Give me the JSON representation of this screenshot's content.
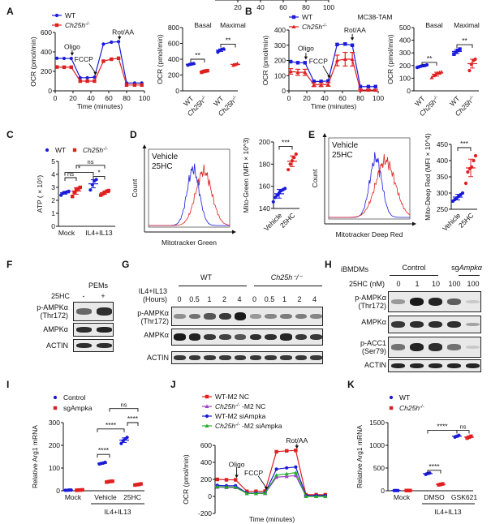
{
  "colors": {
    "wt": "#1a1adb",
    "ko": "#e02020",
    "purple": "#a040d0",
    "green": "#22b022"
  },
  "panel_labels": [
    "A",
    "B",
    "C",
    "D",
    "E",
    "F",
    "G",
    "H",
    "I",
    "J",
    "K"
  ],
  "chart_data": [
    {
      "id": "A-line",
      "type": "line",
      "title": "",
      "xlabel": "Time (minutes)",
      "ylabel": "OCR (pmol/min)",
      "xlim": [
        0,
        100
      ],
      "ylim": [
        0,
        600
      ],
      "xticks": [
        0,
        20,
        40,
        60,
        80,
        100
      ],
      "yticks": [
        0,
        200,
        400,
        600
      ],
      "legend": [
        "WT",
        "Ch25h-/-"
      ],
      "legend_position": "top-left",
      "annotations": [
        "Oligo",
        "FCCP",
        "Rot/AA"
      ],
      "x": [
        2,
        10,
        18,
        28,
        36,
        44,
        54,
        63,
        71,
        80,
        89,
        97
      ],
      "series": [
        {
          "name": "WT",
          "values": [
            335,
            333,
            333,
            135,
            135,
            140,
            480,
            500,
            505,
            80,
            80,
            80
          ]
        },
        {
          "name": "Ch25h-/-",
          "values": [
            245,
            243,
            243,
            100,
            100,
            100,
            305,
            325,
            335,
            60,
            60,
            60
          ]
        }
      ]
    },
    {
      "id": "A-dot",
      "type": "scatter",
      "ylabel": "OCR (pmol/min)",
      "ylim": [
        0,
        800
      ],
      "yticks": [
        0,
        200,
        400,
        600,
        800
      ],
      "groups": [
        "Basal",
        "Maximal"
      ],
      "categories": [
        "WT",
        "Ch25h-/-",
        "WT",
        "Ch25h-/-"
      ],
      "sig": [
        "**",
        "**"
      ],
      "points": [
        [
          325,
          335,
          340,
          345
        ],
        [
          235,
          245,
          250,
          255
        ],
        [
          490,
          510,
          525,
          530
        ],
        [
          325,
          335,
          345
        ]
      ]
    },
    {
      "id": "B-line",
      "type": "line",
      "title": "MC38-TAM",
      "xlabel": "Time (minutes)",
      "ylabel": "OCR (pmol/min)",
      "xlim": [
        0,
        100
      ],
      "ylim": [
        0,
        400
      ],
      "xticks": [
        0,
        20,
        40,
        60,
        80,
        100
      ],
      "yticks": [
        0,
        100,
        200,
        300,
        400
      ],
      "legend": [
        "WT",
        "Ch25h-/-"
      ],
      "legend_position": "top-left",
      "annotations": [
        "Oligo",
        "FCCP",
        "Rot/AA"
      ],
      "x": [
        2,
        10,
        18,
        28,
        36,
        44,
        54,
        63,
        71,
        80,
        89,
        97
      ],
      "series": [
        {
          "name": "WT",
          "values": [
            192,
            185,
            185,
            62,
            62,
            65,
            305,
            308,
            300,
            28,
            28,
            28
          ]
        },
        {
          "name": "Ch25h-/-",
          "values": [
            128,
            122,
            122,
            40,
            40,
            42,
            200,
            208,
            208,
            5,
            5,
            5
          ],
          "errors": [
            18,
            20,
            20,
            12,
            12,
            12,
            35,
            45,
            45,
            5,
            5,
            5
          ]
        }
      ]
    },
    {
      "id": "B-dot",
      "type": "scatter",
      "ylabel": "OCR (pmol/min)",
      "ylim": [
        0,
        500
      ],
      "yticks": [
        0,
        100,
        200,
        300,
        400,
        500
      ],
      "groups": [
        "Basal",
        "Maximal"
      ],
      "categories": [
        "WT",
        "Ch25h-/-",
        "WT",
        "Ch25h-/-"
      ],
      "sig": [
        "**",
        "**"
      ],
      "points": [
        [
          185,
          190,
          195,
          200,
          200,
          205
        ],
        [
          105,
          120,
          130,
          140,
          145,
          150
        ],
        [
          290,
          305,
          320,
          330
        ],
        [
          160,
          210,
          240,
          250
        ]
      ]
    },
    {
      "id": "C",
      "type": "scatter",
      "ylabel": "ATP ( × 10^5)",
      "ylim": [
        0,
        5
      ],
      "yticks": [
        0,
        1,
        2,
        3,
        4,
        5
      ],
      "categories": [
        "Mock",
        "IL4+IL13"
      ],
      "legend": [
        "WT",
        "Ch25h-/-"
      ],
      "sig": [
        "ns",
        "*",
        "*",
        "ns"
      ],
      "points": [
        [
          2.4,
          2.55,
          2.6,
          2.65,
          2.7
        ],
        [
          2.3,
          2.6,
          2.8,
          2.9,
          3.0
        ],
        [
          2.8,
          3.2,
          3.5,
          3.6
        ],
        [
          2.4,
          2.5,
          2.6,
          2.7,
          2.75
        ]
      ]
    },
    {
      "id": "D-hist",
      "type": "area",
      "xlabel": "Mitotracker Green",
      "ylabel": "Count",
      "legend": [
        "Vehicle",
        "25HC"
      ]
    },
    {
      "id": "D-dot",
      "type": "scatter",
      "ylabel": "Mito-Green (MFI × 10^3)",
      "ylim": [
        140,
        200
      ],
      "yticks": [
        140,
        160,
        180,
        200
      ],
      "categories": [
        "Vehicle",
        "25HC"
      ],
      "sig": [
        "***"
      ],
      "points": [
        [
          146,
          150,
          152,
          154,
          156,
          157,
          158
        ],
        [
          175,
          180,
          183,
          186,
          189
        ]
      ]
    },
    {
      "id": "E-hist",
      "type": "area",
      "xlabel": "Mitotracker Deep Red",
      "ylabel": "Count",
      "legend": [
        "Vehicle",
        "25HC"
      ]
    },
    {
      "id": "E-dot",
      "type": "scatter",
      "ylabel": "Mito-Deep Red (MFI × 10^4)",
      "ylim": [
        250,
        450
      ],
      "yticks": [
        250,
        300,
        350,
        400,
        450
      ],
      "categories": [
        "Vehicle",
        "25HC"
      ],
      "sig": [
        "***"
      ],
      "points": [
        [
          275,
          280,
          285,
          290,
          295,
          300
        ],
        [
          330,
          365,
          375,
          380,
          400,
          415
        ]
      ]
    },
    {
      "id": "I",
      "type": "scatter",
      "ylabel": "Relative Arg1 mRNA",
      "ylim": [
        0,
        300
      ],
      "yticks": [
        0,
        100,
        200,
        300
      ],
      "categories": [
        "Mock",
        "Vehicle",
        "25HC"
      ],
      "group_label": "IL4+IL13",
      "legend": [
        "Control",
        "sgAmpka"
      ],
      "sig": [
        "****",
        "****",
        "****",
        "ns"
      ],
      "points": [
        [
          2,
          2,
          3,
          3
        ],
        [
          2,
          3,
          3,
          4
        ],
        [
          118,
          120,
          122,
          125
        ],
        [
          38,
          40,
          41,
          42
        ],
        [
          208,
          220,
          228,
          235
        ],
        [
          25,
          27,
          28,
          30
        ]
      ]
    },
    {
      "id": "J",
      "type": "line",
      "xlabel": "Time (minutes)",
      "ylabel": "OCR (pmol/min)",
      "xlim": [
        0,
        100
      ],
      "ylim": [
        -200,
        600
      ],
      "xticks": [
        20,
        40,
        60,
        80,
        100
      ],
      "yticks": [
        -200,
        0,
        200,
        400,
        600
      ],
      "legend": [
        "WT-M2 NC",
        "Ch25h-/- -M2 NC",
        "WT-M2 siAmpka",
        "Ch25h-/- -M2 siAmpka"
      ],
      "annotations": [
        "Oligo",
        "FCCP",
        "Rot/AA"
      ],
      "x": [
        2,
        10,
        18,
        28,
        36,
        44,
        54,
        63,
        71,
        80,
        89,
        97
      ],
      "series": [
        {
          "name": "WT-M2 NC",
          "values": [
            200,
            195,
            195,
            60,
            60,
            62,
            525,
            535,
            540,
            20,
            20,
            20
          ]
        },
        {
          "name": "Ch25h-/- -M2 NC",
          "values": [
            110,
            105,
            105,
            35,
            35,
            35,
            225,
            235,
            245,
            5,
            5,
            5
          ]
        },
        {
          "name": "WT-M2 siAmpka",
          "values": [
            130,
            125,
            125,
            40,
            40,
            42,
            320,
            335,
            345,
            10,
            10,
            10
          ]
        },
        {
          "name": "Ch25h-/- -M2 siAmpka",
          "values": [
            115,
            110,
            110,
            35,
            35,
            38,
            250,
            265,
            280,
            0,
            0,
            0
          ]
        }
      ]
    },
    {
      "id": "K",
      "type": "scatter",
      "ylabel": "Relative Arg1 mRNA",
      "ylim": [
        0,
        1500
      ],
      "yticks": [
        0,
        500,
        1000,
        1500
      ],
      "categories": [
        "Mock",
        "DMSO",
        "GSK621"
      ],
      "group_label": "IL4+IL13",
      "legend": [
        "WT",
        "Ch25h-/-"
      ],
      "sig": [
        "****",
        "****",
        "ns"
      ],
      "points": [
        [
          5,
          5,
          5
        ],
        [
          5,
          5,
          5
        ],
        [
          360,
          380,
          390
        ],
        [
          130,
          140,
          150
        ],
        [
          1180,
          1200,
          1220
        ],
        [
          1160,
          1180,
          1200
        ]
      ]
    }
  ],
  "blots": {
    "F": {
      "header": "PEMs",
      "cond_label": "25HC",
      "lanes": [
        "-",
        "+"
      ],
      "rows": [
        "p-AMPKα\n(Thr172)",
        "AMPKα",
        "ACTIN"
      ]
    },
    "G": {
      "groups": [
        "WT",
        "Ch25h-/-"
      ],
      "cond_label": "IL4+IL13\n(Hours)",
      "lanes": [
        "0",
        "0.5",
        "1",
        "2",
        "4",
        "0",
        "0.5",
        "1",
        "2",
        "4"
      ],
      "rows": [
        "p-AMPKα\n(Thr172)",
        "AMPKα",
        "ACTIN"
      ],
      "intensity": [
        [
          0.35,
          0.5,
          0.65,
          0.8,
          0.95,
          0.3,
          0.4,
          0.45,
          0.45,
          0.4
        ],
        [
          0.95,
          0.9,
          0.8,
          0.75,
          0.65,
          0.85,
          0.85,
          0.9,
          0.8,
          0.8
        ],
        [
          0.8,
          0.8,
          0.8,
          0.8,
          0.8,
          0.8,
          0.8,
          0.8,
          0.8,
          0.8
        ]
      ]
    },
    "H": {
      "cell": "iBMDMs",
      "groups": [
        "Control",
        "sgAmpka"
      ],
      "cond_label": "25HC (nM)",
      "lanes": [
        "0",
        "1",
        "10",
        "100",
        "100"
      ],
      "rows": [
        "p-AMPKα\n(Thr172)",
        "AMPKα",
        "p-ACC1\n(Ser79)",
        "ACTIN"
      ],
      "intensity": [
        [
          0.3,
          0.95,
          0.9,
          0.6,
          0.05
        ],
        [
          0.8,
          0.85,
          0.85,
          0.85,
          0.25
        ],
        [
          0.5,
          0.9,
          0.85,
          0.5,
          0.05
        ],
        [
          0.9,
          0.9,
          0.9,
          0.9,
          0.9
        ]
      ]
    }
  }
}
